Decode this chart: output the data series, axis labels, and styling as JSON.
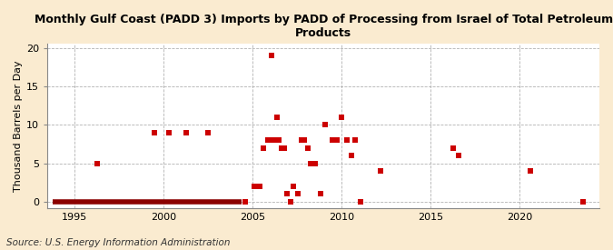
{
  "title": "Monthly Gulf Coast (PADD 3) Imports by PADD of Processing from Israel of Total Petroleum\nProducts",
  "ylabel": "Thousand Barrels per Day",
  "source": "Source: U.S. Energy Information Administration",
  "background_color": "#faebd0",
  "plot_bg_color": "#ffffff",
  "marker_color": "#cc0000",
  "zero_line_color": "#8b0000",
  "xlim": [
    1993.5,
    2024.5
  ],
  "ylim": [
    -0.8,
    20.5
  ],
  "yticks": [
    0,
    5,
    10,
    15,
    20
  ],
  "xticks": [
    1995,
    2000,
    2005,
    2010,
    2015,
    2020
  ],
  "data_points": [
    [
      1996.3,
      5
    ],
    [
      1999.5,
      9
    ],
    [
      2000.3,
      9
    ],
    [
      2001.3,
      9
    ],
    [
      2002.5,
      9
    ],
    [
      2004.6,
      0
    ],
    [
      2005.1,
      2
    ],
    [
      2005.4,
      2
    ],
    [
      2005.6,
      7
    ],
    [
      2005.9,
      8
    ],
    [
      2006.1,
      19
    ],
    [
      2006.2,
      8
    ],
    [
      2006.4,
      11
    ],
    [
      2006.5,
      8
    ],
    [
      2006.65,
      7
    ],
    [
      2006.8,
      7
    ],
    [
      2006.95,
      1
    ],
    [
      2007.15,
      0
    ],
    [
      2007.3,
      2
    ],
    [
      2007.55,
      1
    ],
    [
      2007.75,
      8
    ],
    [
      2007.9,
      8
    ],
    [
      2008.1,
      7
    ],
    [
      2008.3,
      5
    ],
    [
      2008.55,
      5
    ],
    [
      2008.85,
      1
    ],
    [
      2009.1,
      10
    ],
    [
      2009.5,
      8
    ],
    [
      2009.75,
      8
    ],
    [
      2010.0,
      11
    ],
    [
      2010.3,
      8
    ],
    [
      2010.55,
      6
    ],
    [
      2010.8,
      8
    ],
    [
      2011.1,
      0
    ],
    [
      2012.2,
      4
    ],
    [
      2016.3,
      7
    ],
    [
      2016.6,
      6
    ],
    [
      2020.6,
      4
    ],
    [
      2023.6,
      0
    ]
  ],
  "zero_line_x": [
    1993.8,
    2004.4
  ],
  "title_fontsize": 9,
  "ylabel_fontsize": 8,
  "tick_fontsize": 8,
  "source_fontsize": 7.5,
  "marker_size": 16
}
